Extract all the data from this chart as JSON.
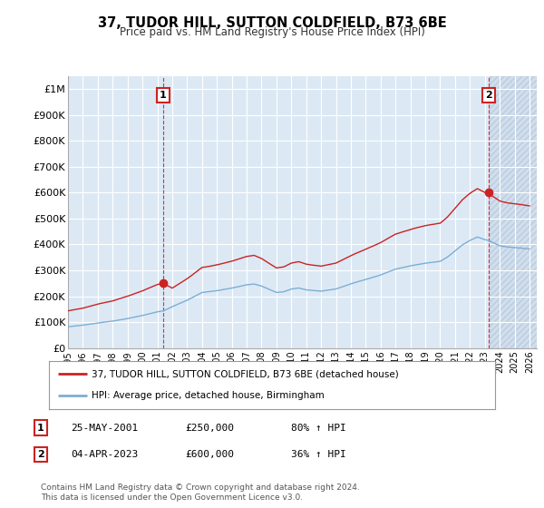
{
  "title": "37, TUDOR HILL, SUTTON COLDFIELD, B73 6BE",
  "subtitle": "Price paid vs. HM Land Registry's House Price Index (HPI)",
  "legend_line1": "37, TUDOR HILL, SUTTON COLDFIELD, B73 6BE (detached house)",
  "legend_line2": "HPI: Average price, detached house, Birmingham",
  "footnote": "Contains HM Land Registry data © Crown copyright and database right 2024.\nThis data is licensed under the Open Government Licence v3.0.",
  "annotation1_date": "25-MAY-2001",
  "annotation1_price": "£250,000",
  "annotation1_hpi": "80% ↑ HPI",
  "annotation2_date": "04-APR-2023",
  "annotation2_price": "£600,000",
  "annotation2_hpi": "36% ↑ HPI",
  "sale1_year": 2001.38,
  "sale1_price": 250000,
  "sale2_year": 2023.25,
  "sale2_price": 600000,
  "hpi_color": "#7bafd4",
  "price_color": "#cc2222",
  "annotation_color": "#cc2222",
  "background_color": "#dce9f5",
  "chart_bg_color": "#dce9f5",
  "grid_color": "#ffffff",
  "ylim_min": 0,
  "ylim_max": 1050000,
  "xlim_min": 1995.0,
  "xlim_max": 2026.5,
  "yticks": [
    0,
    100000,
    200000,
    300000,
    400000,
    500000,
    600000,
    700000,
    800000,
    900000,
    1000000
  ],
  "ytick_labels": [
    "£0",
    "£100K",
    "£200K",
    "£300K",
    "£400K",
    "£500K",
    "£600K",
    "£700K",
    "£800K",
    "£900K",
    "£1M"
  ]
}
